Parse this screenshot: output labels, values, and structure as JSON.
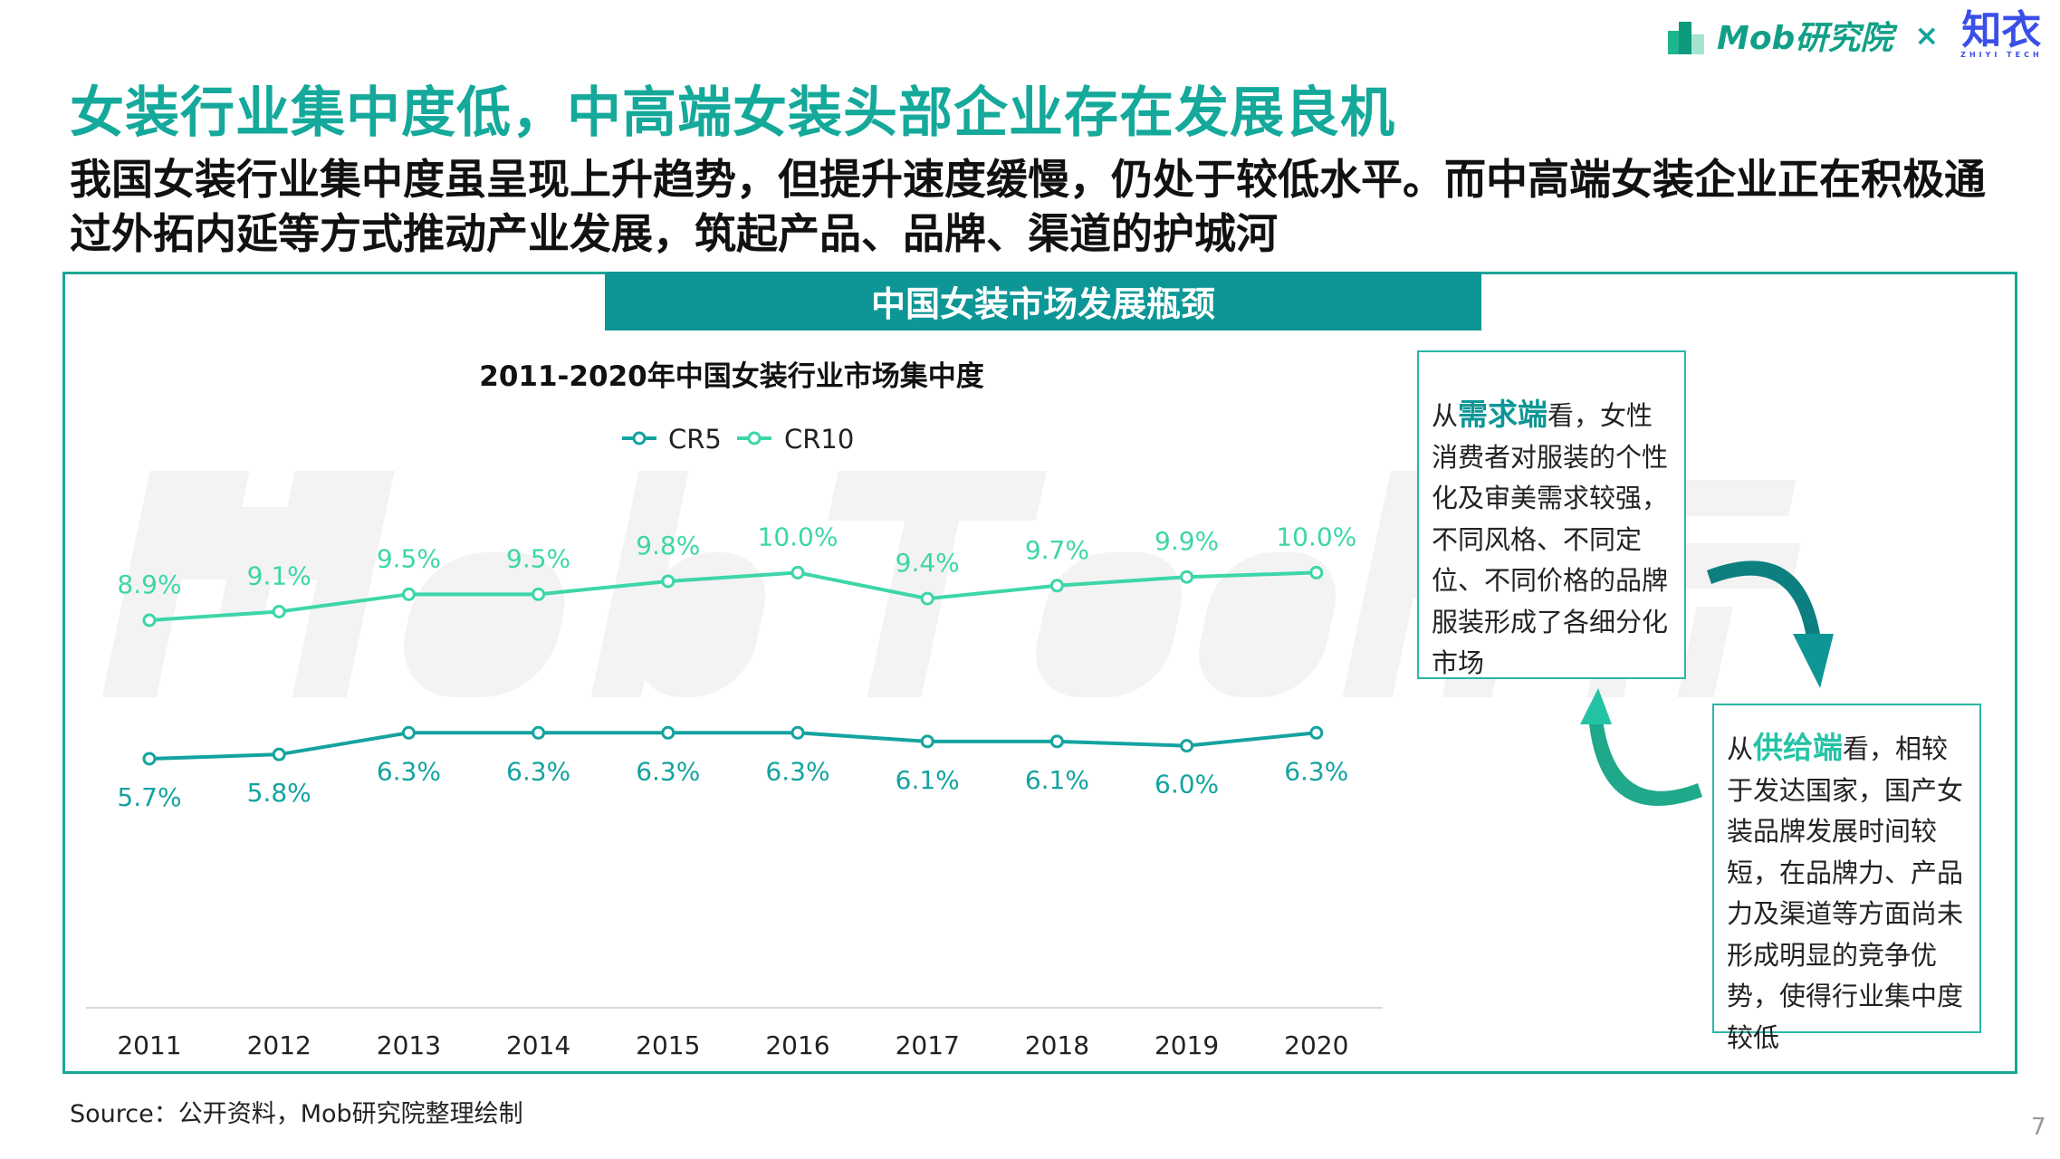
{
  "header": {
    "title": "女装行业集中度低，中高端女装头部企业存在发展良机",
    "subtitle": "我国女装行业集中度虽呈现上升趋势，但提升速度缓慢，仍处于较低水平。而中高端女装企业正在积极通过外拓内延等方式推动产业发展，筑起产品、品牌、渠道的护城河",
    "logo_text": "Mob研究院",
    "logo_separator": "×",
    "partner_logo": "知衣",
    "partner_logo_sub": "ZHIYI TECH"
  },
  "watermark": "MobTech袤博",
  "banner": "中国女装市场发展瓶颈",
  "chart_data": {
    "type": "line",
    "title": "2011-2020年中国女装行业市场集中度",
    "categories": [
      "2011",
      "2012",
      "2013",
      "2014",
      "2015",
      "2016",
      "2017",
      "2018",
      "2019",
      "2020"
    ],
    "series": [
      {
        "name": "CR5",
        "values": [
          5.7,
          5.8,
          6.3,
          6.3,
          6.3,
          6.3,
          6.1,
          6.1,
          6.0,
          6.3
        ],
        "labels": [
          "5.7%",
          "5.8%",
          "6.3%",
          "6.3%",
          "6.3%",
          "6.3%",
          "6.1%",
          "6.1%",
          "6.0%",
          "6.3%"
        ],
        "color": "#14a3a0"
      },
      {
        "name": "CR10",
        "values": [
          8.9,
          9.1,
          9.5,
          9.5,
          9.8,
          10.0,
          9.4,
          9.7,
          9.9,
          10.0
        ],
        "labels": [
          "8.9%",
          "9.1%",
          "9.5%",
          "9.5%",
          "9.8%",
          "10.0%",
          "9.4%",
          "9.7%",
          "9.9%",
          "10.0%"
        ],
        "color": "#3dd6a8"
      }
    ],
    "legend": "top-center",
    "grid": false
  },
  "demand_box": {
    "prefix": "从",
    "highlight": "需求端",
    "text": "看，女性消费者对服装的个性化及审美需求较强，不同风格、不同定位、不同价格的品牌服装形成了各细分化市场"
  },
  "supply_box": {
    "prefix": "从",
    "highlight": "供给端",
    "text": "看，相较于发达国家，国产女装品牌发展时间较短，在品牌力、产品力及渠道等方面尚未形成明显的竞争优势，使得行业集中度较低"
  },
  "footer": {
    "source": "Source：公开资料，Mob研究院整理绘制",
    "page": "7"
  }
}
